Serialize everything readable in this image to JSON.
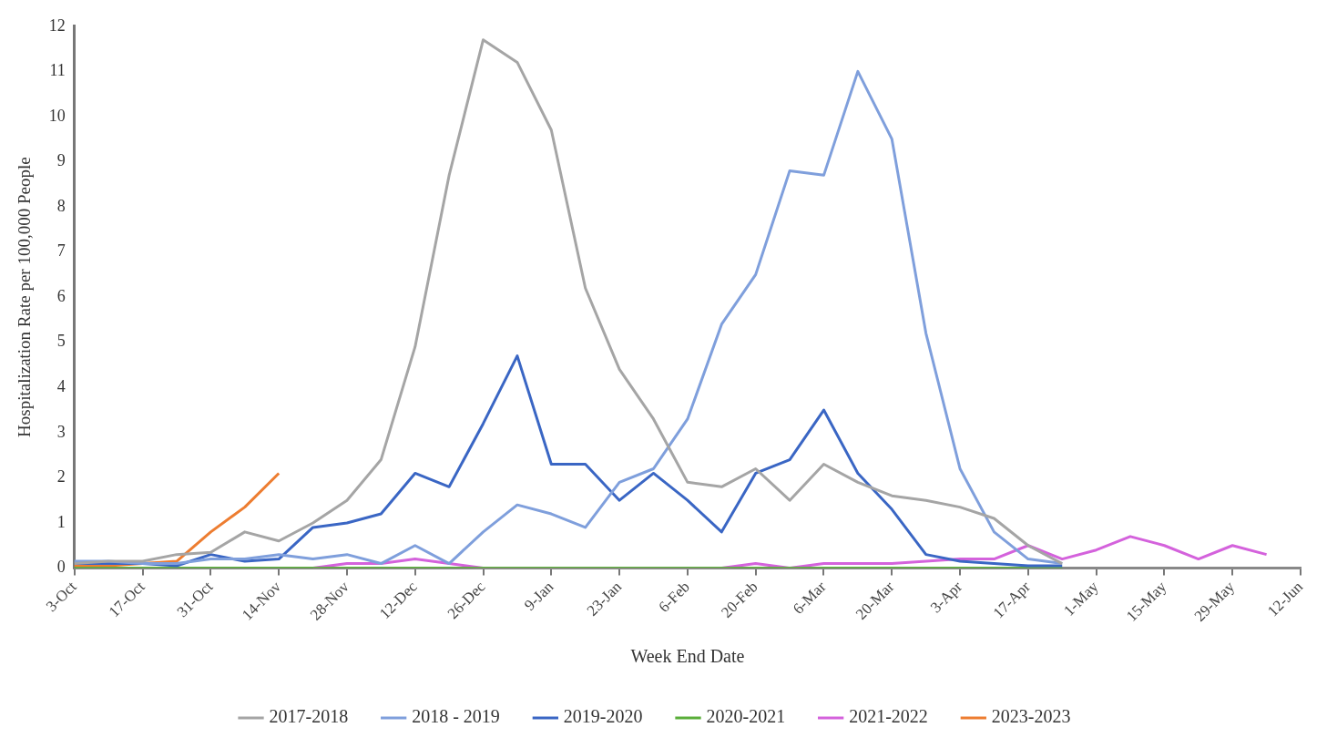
{
  "chart_data": {
    "type": "line",
    "xlabel": "Week End Date",
    "ylabel": "Hospitalization Rate per 100,000 People",
    "categories": [
      "3-Oct",
      null,
      "17-Oct",
      null,
      "31-Oct",
      null,
      "14-Nov",
      null,
      "28-Nov",
      null,
      "12-Dec",
      null,
      "26-Dec",
      null,
      "9-Jan",
      null,
      "23-Jan",
      null,
      "6-Feb",
      null,
      "20-Feb",
      null,
      "6-Mar",
      null,
      "20-Mar",
      null,
      "3-Apr",
      null,
      "17-Apr",
      null,
      "1-May",
      null,
      "15-May",
      null,
      "29-May",
      null,
      "12-Jun"
    ],
    "ylim": [
      0,
      12
    ],
    "yticks": [
      0,
      1,
      2,
      3,
      4,
      5,
      6,
      7,
      8,
      9,
      10,
      11,
      12
    ],
    "grid": false,
    "legend": "bottom",
    "marker": "none",
    "line_style": "solid",
    "series": [
      {
        "name": "2017-2018",
        "color": "#a5a5a5",
        "values": [
          0.1,
          0.15,
          0.15,
          0.3,
          0.35,
          0.8,
          0.6,
          1.0,
          1.5,
          2.4,
          4.9,
          8.7,
          11.7,
          11.2,
          9.7,
          6.2,
          4.4,
          3.3,
          1.9,
          1.8,
          2.2,
          1.5,
          2.3,
          1.9,
          1.6,
          1.5,
          1.35,
          1.1,
          0.5,
          0.1,
          null,
          null,
          null,
          null,
          null,
          null,
          null
        ]
      },
      {
        "name": "2018 - 2019",
        "color": "#7f9fdc",
        "values": [
          0.15,
          0.15,
          0.1,
          0.1,
          0.2,
          0.2,
          0.3,
          0.2,
          0.3,
          0.1,
          0.5,
          0.1,
          0.8,
          1.4,
          1.2,
          0.9,
          1.9,
          2.2,
          3.3,
          5.4,
          6.5,
          8.8,
          8.7,
          11.0,
          9.5,
          5.2,
          2.2,
          0.8,
          0.2,
          0.1,
          null,
          null,
          null,
          null,
          null,
          null,
          null
        ]
      },
      {
        "name": "2019-2020",
        "color": "#3a66c4",
        "values": [
          0.1,
          0.1,
          0.1,
          0.05,
          0.3,
          0.15,
          0.2,
          0.9,
          1.0,
          1.2,
          2.1,
          1.8,
          3.2,
          4.7,
          2.3,
          2.3,
          1.5,
          2.1,
          1.5,
          0.8,
          2.1,
          2.4,
          3.5,
          2.1,
          1.3,
          0.3,
          0.15,
          0.1,
          0.05,
          0.05,
          null,
          null,
          null,
          null,
          null,
          null,
          null
        ]
      },
      {
        "name": "2020-2021",
        "color": "#5aae3a",
        "values": [
          0,
          0,
          0,
          0,
          0,
          0,
          0,
          0,
          0,
          0,
          0,
          0,
          0,
          0,
          0,
          0,
          0,
          0,
          0,
          0,
          0,
          0,
          0,
          0,
          0,
          0,
          0,
          0,
          0,
          0,
          null,
          null,
          null,
          null,
          null,
          null,
          null
        ]
      },
      {
        "name": "2021-2022",
        "color": "#d462dc",
        "values": [
          null,
          null,
          null,
          null,
          null,
          null,
          null,
          0,
          0.1,
          0.1,
          0.2,
          0.1,
          0,
          0,
          0,
          0,
          0,
          0,
          0,
          0,
          0.1,
          0,
          0.1,
          0.1,
          0.1,
          0.15,
          0.2,
          0.2,
          0.5,
          0.2,
          0.4,
          0.7,
          0.5,
          0.2,
          0.5,
          0.3,
          null
        ]
      },
      {
        "name": "2023-2023",
        "color": "#ed7d31",
        "values": [
          0.05,
          0.05,
          0.1,
          0.15,
          0.8,
          1.35,
          2.1,
          null,
          null,
          null,
          null,
          null,
          null,
          null,
          null,
          null,
          null,
          null,
          null,
          null,
          null,
          null,
          null,
          null,
          null,
          null,
          null,
          null,
          null,
          null,
          null,
          null,
          null,
          null,
          null,
          null,
          null
        ]
      }
    ]
  }
}
